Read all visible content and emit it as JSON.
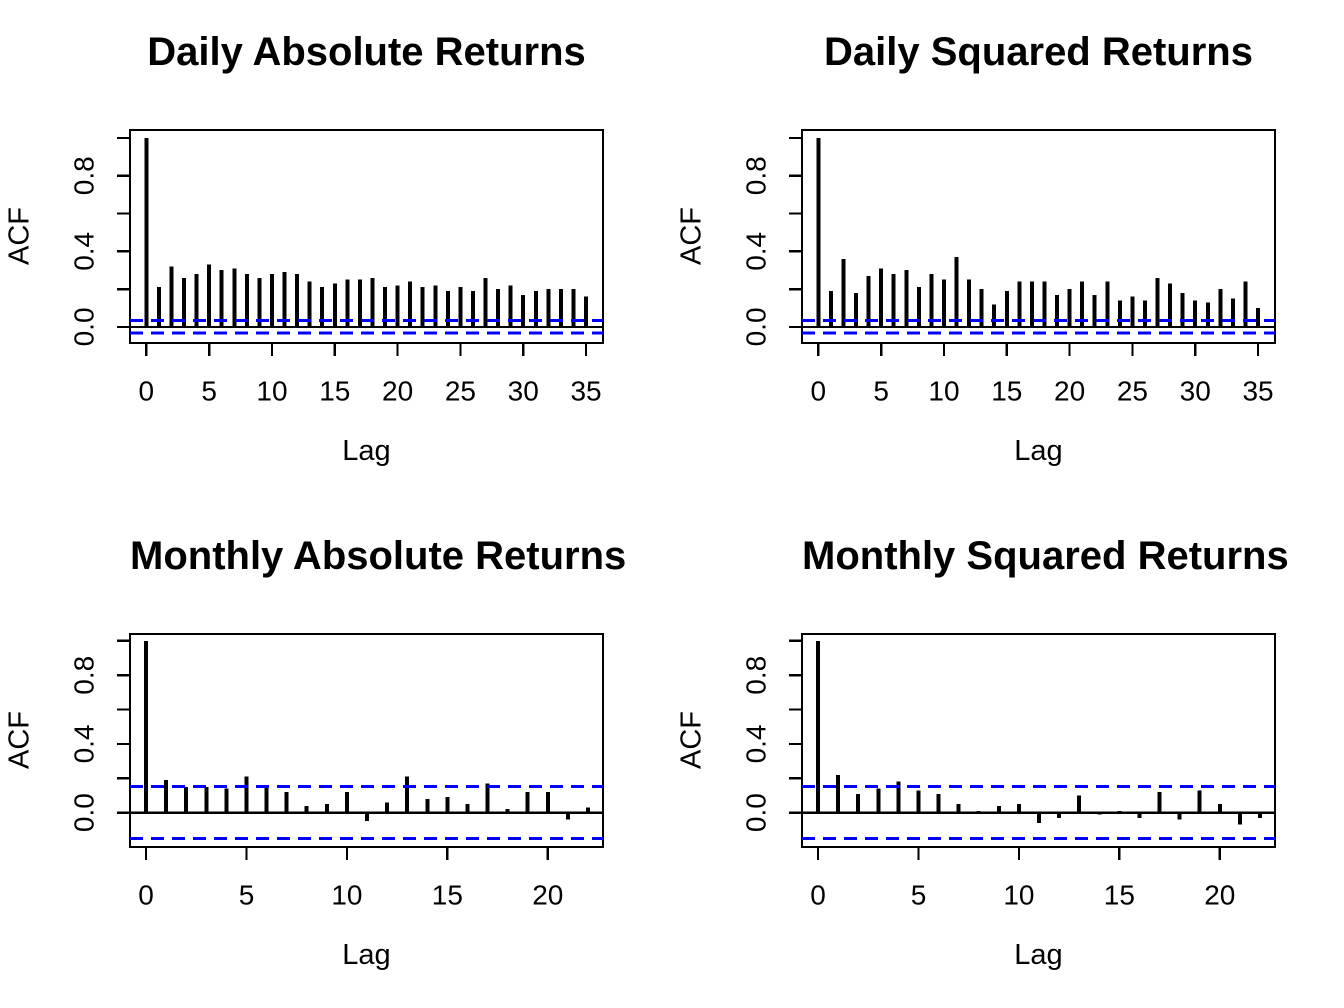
{
  "figure": {
    "rows": 2,
    "cols": 2,
    "background": "#ffffff",
    "text_color": "#000000"
  },
  "chart_data": [
    {
      "type": "bar",
      "subtype": "acf-stem-plot",
      "title": "Daily Absolute Returns",
      "xlabel": "Lag",
      "ylabel": "ACF",
      "lags": [
        0,
        1,
        2,
        3,
        4,
        5,
        6,
        7,
        8,
        9,
        10,
        11,
        12,
        13,
        14,
        15,
        16,
        17,
        18,
        19,
        20,
        21,
        22,
        23,
        24,
        25,
        26,
        27,
        28,
        29,
        30,
        31,
        32,
        33,
        34,
        35
      ],
      "values": [
        1.0,
        0.21,
        0.32,
        0.26,
        0.28,
        0.33,
        0.3,
        0.31,
        0.28,
        0.26,
        0.28,
        0.29,
        0.28,
        0.24,
        0.21,
        0.23,
        0.25,
        0.25,
        0.26,
        0.21,
        0.22,
        0.24,
        0.21,
        0.22,
        0.19,
        0.21,
        0.19,
        0.26,
        0.2,
        0.22,
        0.17,
        0.19,
        0.2,
        0.2,
        0.2,
        0.16
      ],
      "conf_upper": 0.033,
      "conf_lower": -0.033,
      "conf_line_color": "#0000ff",
      "bar_color": "#000000",
      "xlim": [
        -1.3,
        36.35
      ],
      "ylim": [
        -0.085,
        1.042
      ],
      "x_ticks": [
        0,
        5,
        10,
        15,
        20,
        25,
        30,
        35
      ],
      "y_ticks": [
        0,
        0.2,
        0.4,
        0.6,
        0.8,
        1.0
      ],
      "y_tick_labels": [
        {
          "value": 0.0,
          "label": "0.0"
        },
        {
          "value": 0.4,
          "label": "0.4"
        },
        {
          "value": 0.8,
          "label": "0.8"
        }
      ],
      "grid": false,
      "legend": null
    },
    {
      "type": "bar",
      "subtype": "acf-stem-plot",
      "title": "Daily Squared Returns",
      "xlabel": "Lag",
      "ylabel": "ACF",
      "lags": [
        0,
        1,
        2,
        3,
        4,
        5,
        6,
        7,
        8,
        9,
        10,
        11,
        12,
        13,
        14,
        15,
        16,
        17,
        18,
        19,
        20,
        21,
        22,
        23,
        24,
        25,
        26,
        27,
        28,
        29,
        30,
        31,
        32,
        33,
        34,
        35
      ],
      "values": [
        1.0,
        0.19,
        0.36,
        0.18,
        0.27,
        0.31,
        0.28,
        0.3,
        0.21,
        0.28,
        0.25,
        0.37,
        0.25,
        0.2,
        0.12,
        0.19,
        0.24,
        0.24,
        0.24,
        0.17,
        0.2,
        0.24,
        0.17,
        0.24,
        0.14,
        0.16,
        0.14,
        0.26,
        0.23,
        0.18,
        0.14,
        0.13,
        0.2,
        0.15,
        0.24,
        0.1
      ],
      "conf_upper": 0.033,
      "conf_lower": -0.033,
      "conf_line_color": "#0000ff",
      "bar_color": "#000000",
      "xlim": [
        -1.3,
        36.35
      ],
      "ylim": [
        -0.085,
        1.042
      ],
      "x_ticks": [
        0,
        5,
        10,
        15,
        20,
        25,
        30,
        35
      ],
      "y_ticks": [
        0,
        0.2,
        0.4,
        0.6,
        0.8,
        1.0
      ],
      "y_tick_labels": [
        {
          "value": 0.0,
          "label": "0.0"
        },
        {
          "value": 0.4,
          "label": "0.4"
        },
        {
          "value": 0.8,
          "label": "0.8"
        }
      ],
      "grid": false,
      "legend": null
    },
    {
      "type": "bar",
      "subtype": "acf-stem-plot",
      "title": "Monthly Absolute Returns",
      "xlabel": "Lag",
      "ylabel": "ACF",
      "lags": [
        0,
        1,
        2,
        3,
        4,
        5,
        6,
        7,
        8,
        9,
        10,
        11,
        12,
        13,
        14,
        15,
        16,
        17,
        18,
        19,
        20,
        21,
        22
      ],
      "values": [
        1.0,
        0.19,
        0.15,
        0.15,
        0.14,
        0.21,
        0.15,
        0.12,
        0.04,
        0.05,
        0.12,
        -0.05,
        0.06,
        0.21,
        0.08,
        0.09,
        0.05,
        0.17,
        0.02,
        0.12,
        0.12,
        -0.04,
        0.03
      ],
      "conf_upper": 0.151,
      "conf_lower": -0.151,
      "conf_line_color": "#0000ff",
      "bar_color": "#000000",
      "xlim": [
        -0.8,
        22.75
      ],
      "ylim": [
        -0.2,
        1.04
      ],
      "x_ticks": [
        0,
        5,
        10,
        15,
        20
      ],
      "y_ticks": [
        0,
        0.2,
        0.4,
        0.6,
        0.8,
        1.0
      ],
      "y_tick_labels": [
        {
          "value": 0.0,
          "label": "0.0"
        },
        {
          "value": 0.4,
          "label": "0.4"
        },
        {
          "value": 0.8,
          "label": "0.8"
        }
      ],
      "grid": false,
      "legend": null
    },
    {
      "type": "bar",
      "subtype": "acf-stem-plot",
      "title": "Monthly Squared Returns",
      "xlabel": "Lag",
      "ylabel": "ACF",
      "lags": [
        0,
        1,
        2,
        3,
        4,
        5,
        6,
        7,
        8,
        9,
        10,
        11,
        12,
        13,
        14,
        15,
        16,
        17,
        18,
        19,
        20,
        21,
        22
      ],
      "values": [
        1.0,
        0.22,
        0.11,
        0.14,
        0.18,
        0.13,
        0.11,
        0.05,
        0.01,
        0.04,
        0.05,
        -0.06,
        -0.03,
        0.1,
        -0.01,
        0.01,
        -0.03,
        0.12,
        -0.04,
        0.13,
        0.05,
        -0.07,
        -0.03
      ],
      "conf_upper": 0.151,
      "conf_lower": -0.151,
      "conf_line_color": "#0000ff",
      "bar_color": "#000000",
      "xlim": [
        -0.8,
        22.75
      ],
      "ylim": [
        -0.2,
        1.04
      ],
      "x_ticks": [
        0,
        5,
        10,
        15,
        20
      ],
      "y_ticks": [
        0,
        0.2,
        0.4,
        0.6,
        0.8,
        1.0
      ],
      "y_tick_labels": [
        {
          "value": 0.0,
          "label": "0.0"
        },
        {
          "value": 0.4,
          "label": "0.4"
        },
        {
          "value": 0.8,
          "label": "0.8"
        }
      ],
      "grid": false,
      "legend": null
    }
  ]
}
